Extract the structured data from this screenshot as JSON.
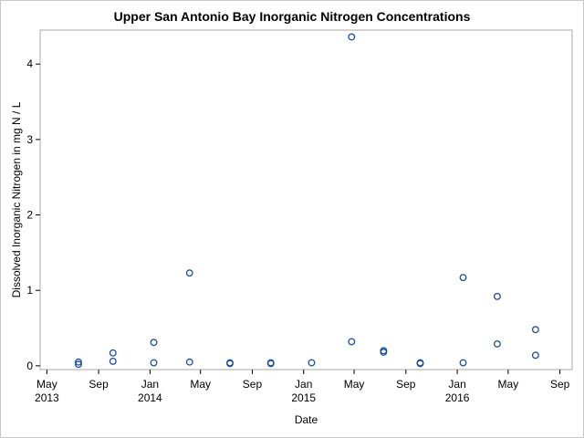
{
  "chart_data": {
    "type": "scatter",
    "title": "Upper San Antonio Bay Inorganic Nitrogen Concentrations",
    "xlabel": "Date",
    "ylabel": "Dissolved Inorganic Nitrogen in mg N / L",
    "ylim": [
      -0.05,
      4.45
    ],
    "xlim": [
      "2013-04-15",
      "2016-09-30"
    ],
    "yticks": [
      0,
      1,
      2,
      3,
      4
    ],
    "xticks": [
      {
        "date": "2013-05-01",
        "label": "May",
        "label2": "2013"
      },
      {
        "date": "2013-09-01",
        "label": "Sep",
        "label2": ""
      },
      {
        "date": "2014-01-01",
        "label": "Jan",
        "label2": "2014"
      },
      {
        "date": "2014-05-01",
        "label": "May",
        "label2": ""
      },
      {
        "date": "2014-09-01",
        "label": "Sep",
        "label2": ""
      },
      {
        "date": "2015-01-01",
        "label": "Jan",
        "label2": "2015"
      },
      {
        "date": "2015-05-01",
        "label": "May",
        "label2": ""
      },
      {
        "date": "2015-09-01",
        "label": "Sep",
        "label2": ""
      },
      {
        "date": "2016-01-01",
        "label": "Jan",
        "label2": "2016"
      },
      {
        "date": "2016-05-01",
        "label": "May",
        "label2": ""
      },
      {
        "date": "2016-09-01",
        "label": "Sep",
        "label2": ""
      }
    ],
    "grid": false,
    "marker_color": "#1f4e9c",
    "points": [
      {
        "x": "2013-07-15",
        "y": 0.05
      },
      {
        "x": "2013-07-15",
        "y": 0.02
      },
      {
        "x": "2013-10-05",
        "y": 0.17
      },
      {
        "x": "2013-10-05",
        "y": 0.06
      },
      {
        "x": "2014-01-10",
        "y": 0.31
      },
      {
        "x": "2014-01-10",
        "y": 0.04
      },
      {
        "x": "2014-04-05",
        "y": 1.23
      },
      {
        "x": "2014-04-05",
        "y": 0.05
      },
      {
        "x": "2014-07-10",
        "y": 0.04
      },
      {
        "x": "2014-07-10",
        "y": 0.03
      },
      {
        "x": "2014-10-15",
        "y": 0.04
      },
      {
        "x": "2014-10-15",
        "y": 0.03
      },
      {
        "x": "2015-01-20",
        "y": 0.04
      },
      {
        "x": "2015-04-25",
        "y": 4.36
      },
      {
        "x": "2015-04-25",
        "y": 0.32
      },
      {
        "x": "2015-07-10",
        "y": 0.2
      },
      {
        "x": "2015-07-10",
        "y": 0.18
      },
      {
        "x": "2015-10-05",
        "y": 0.04
      },
      {
        "x": "2015-10-05",
        "y": 0.03
      },
      {
        "x": "2016-01-15",
        "y": 1.17
      },
      {
        "x": "2016-01-15",
        "y": 0.04
      },
      {
        "x": "2016-04-05",
        "y": 0.92
      },
      {
        "x": "2016-04-05",
        "y": 0.29
      },
      {
        "x": "2016-07-05",
        "y": 0.48
      },
      {
        "x": "2016-07-05",
        "y": 0.14
      }
    ]
  }
}
